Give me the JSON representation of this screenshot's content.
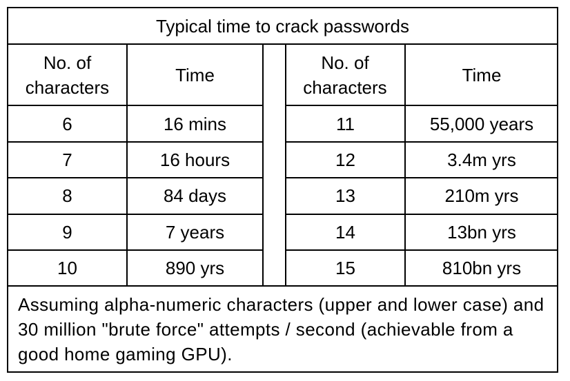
{
  "title": "Typical time to crack passwords",
  "headers": [
    "No. of characters",
    "Time",
    "No. of characters",
    "Time"
  ],
  "left": [
    [
      "6",
      "16 mins"
    ],
    [
      "7",
      "16 hours"
    ],
    [
      "8",
      "84 days"
    ],
    [
      "9",
      "7 years"
    ],
    [
      "10",
      "890 yrs"
    ]
  ],
  "right": [
    [
      "11",
      "55,000 years"
    ],
    [
      "12",
      "3.4m yrs"
    ],
    [
      "13",
      "210m yrs"
    ],
    [
      "14",
      "13bn yrs"
    ],
    [
      "15",
      "810bn yrs"
    ]
  ],
  "footnote": "Assuming alpha-numeric characters (upper and lower case) and 30 million \"brute force\" attempts / second (achievable from a good home gaming GPU)."
}
